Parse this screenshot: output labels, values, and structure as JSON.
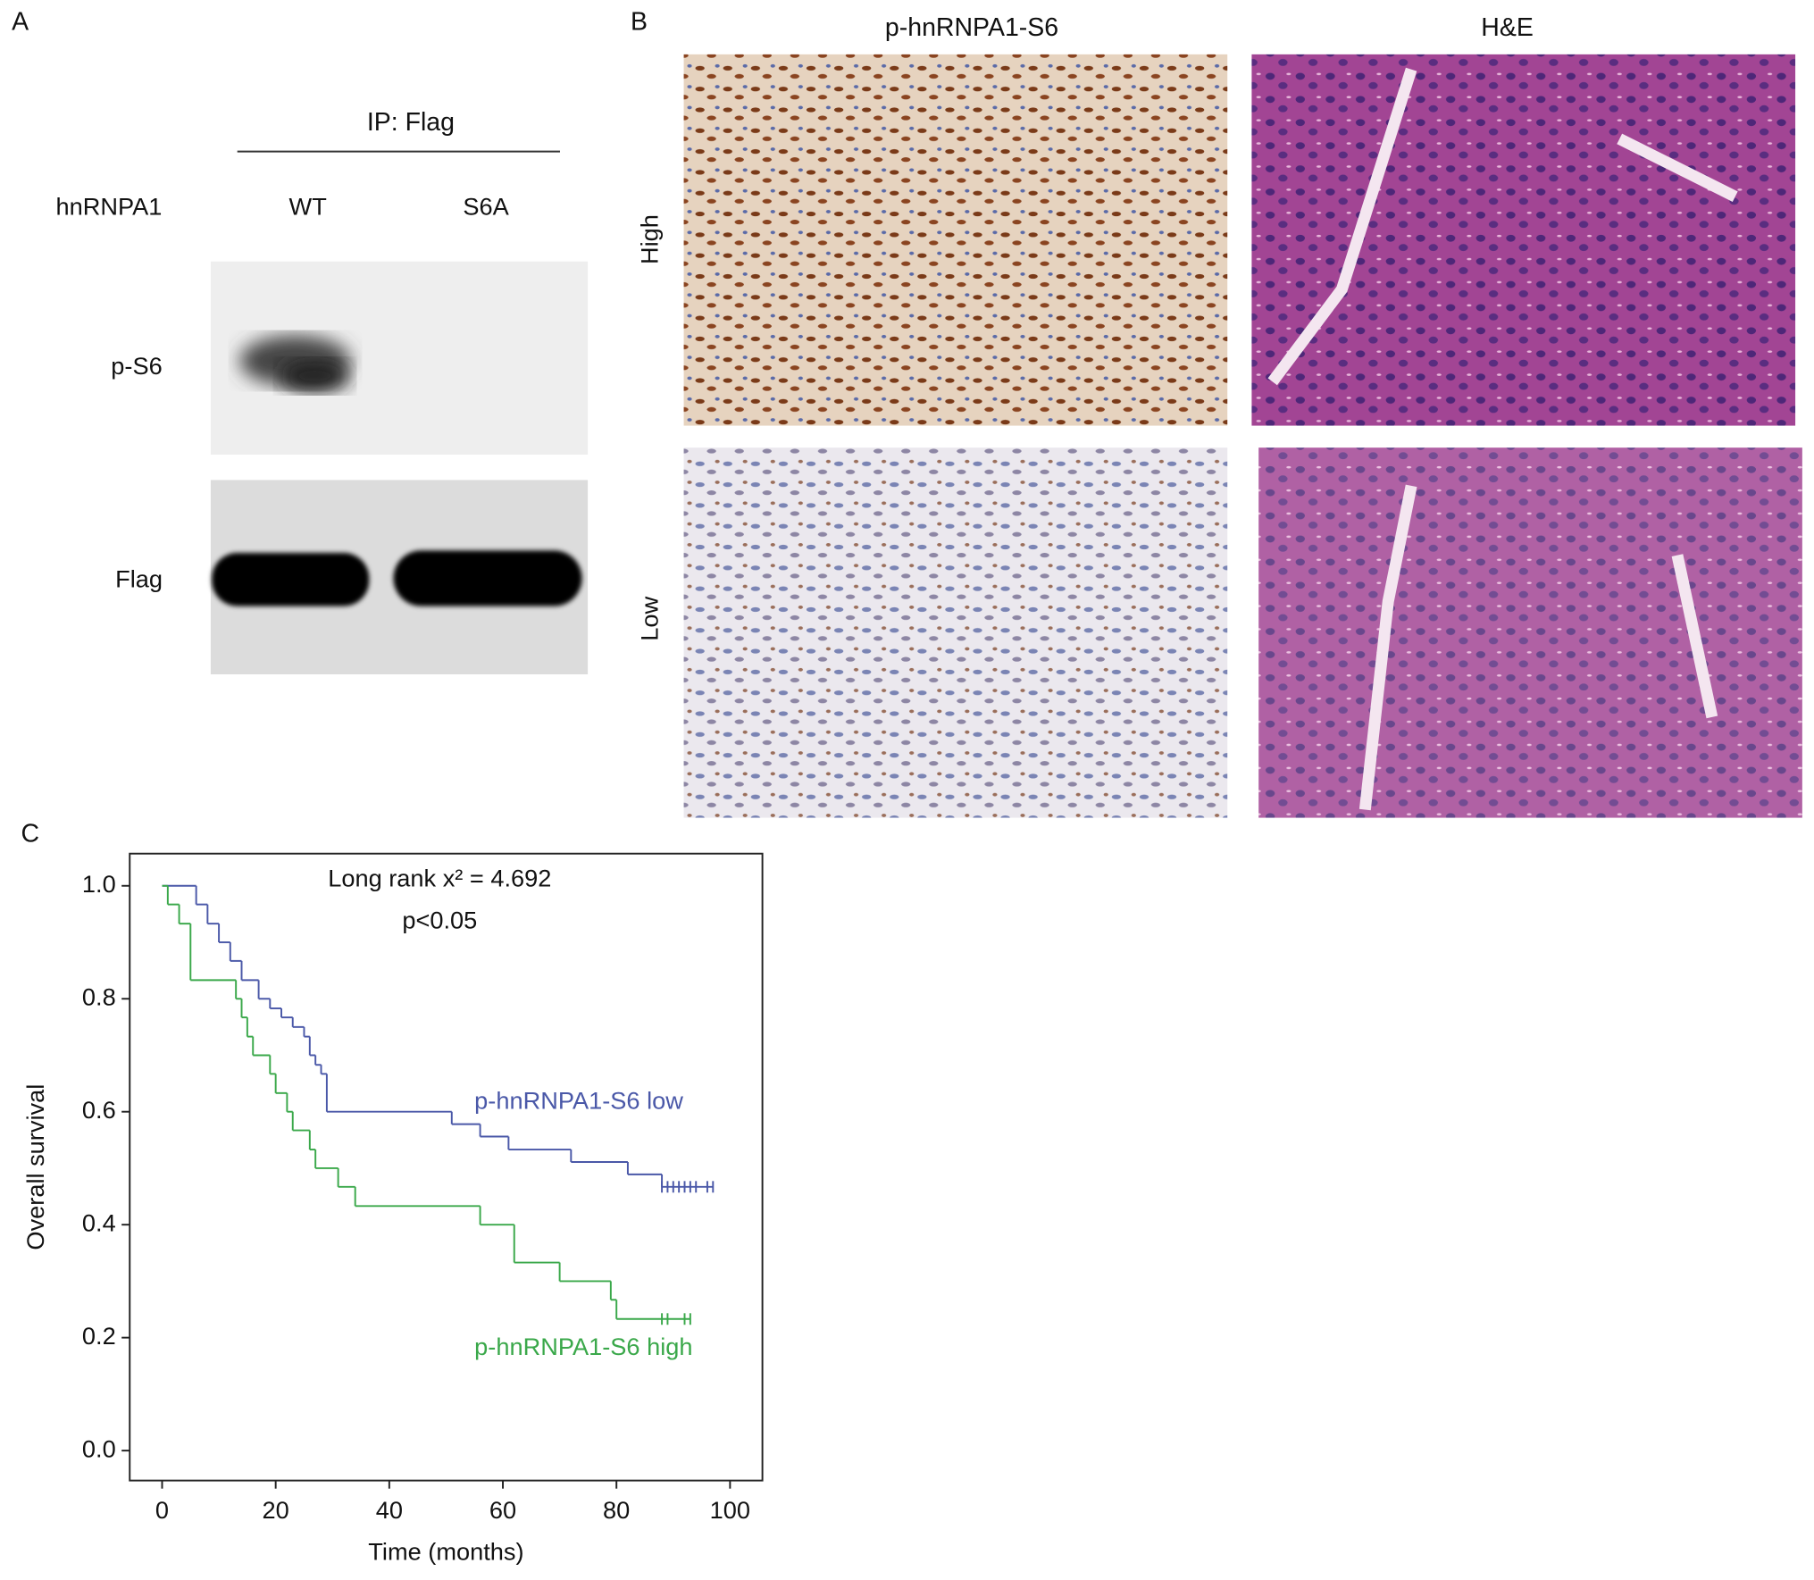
{
  "panel_labels": [
    "A",
    "B",
    "C"
  ],
  "western_blot": {
    "header": "IP: Flag",
    "row_label": "hnRNPA1",
    "lanes": [
      "WT",
      "S6A"
    ],
    "bands": [
      "p-S6",
      "Flag"
    ]
  },
  "ihc": {
    "columns": [
      "p-hnRNPA1-S6",
      "H&E"
    ],
    "rows": [
      "High",
      "Low"
    ]
  },
  "chart_data": {
    "type": "step",
    "x_label": "Time (months)",
    "y_label": "Overall survival",
    "annotations": [
      "Long rank x² = 4.692",
      "p<0.05"
    ],
    "xlim": [
      -5.7,
      105.7
    ],
    "ylim": [
      -0.053,
      1.057
    ],
    "xticks": [
      0,
      20,
      40,
      60,
      80,
      100
    ],
    "yticks": [
      {
        "value": 0,
        "label": "0.0"
      },
      0.2,
      0.4,
      0.6,
      0.8,
      {
        "value": 1,
        "label": "1.0"
      }
    ],
    "series": [
      {
        "name": "p-hnRNPA1-S6 low",
        "color": "#4a58a8",
        "x": [
          0,
          6,
          8,
          10,
          12,
          14,
          17,
          19,
          21,
          23,
          25,
          26,
          27,
          28,
          29,
          51,
          56,
          61,
          72,
          82,
          88,
          97
        ],
        "values": [
          1,
          0.967,
          0.933,
          0.9,
          0.867,
          0.833,
          0.8,
          0.783,
          0.767,
          0.75,
          0.733,
          0.7,
          0.683,
          0.667,
          0.6,
          0.578,
          0.556,
          0.533,
          0.511,
          0.489,
          0.467,
          0.467
        ],
        "censor_x": [
          88,
          89,
          90,
          91,
          92,
          93,
          94,
          96,
          97
        ]
      },
      {
        "name": "p-hnRNPA1-S6 high",
        "color": "#3aa84a",
        "x": [
          0,
          1,
          3,
          5,
          13,
          14,
          15,
          16,
          19,
          20,
          22,
          23,
          26,
          27,
          31,
          34,
          56,
          62,
          70,
          79,
          80,
          93
        ],
        "values": [
          1,
          0.967,
          0.933,
          0.833,
          0.8,
          0.767,
          0.733,
          0.7,
          0.667,
          0.633,
          0.6,
          0.567,
          0.533,
          0.5,
          0.467,
          0.433,
          0.4,
          0.333,
          0.3,
          0.267,
          0.233,
          0.233
        ],
        "censor_x": [
          88,
          89,
          92,
          93
        ]
      }
    ]
  }
}
